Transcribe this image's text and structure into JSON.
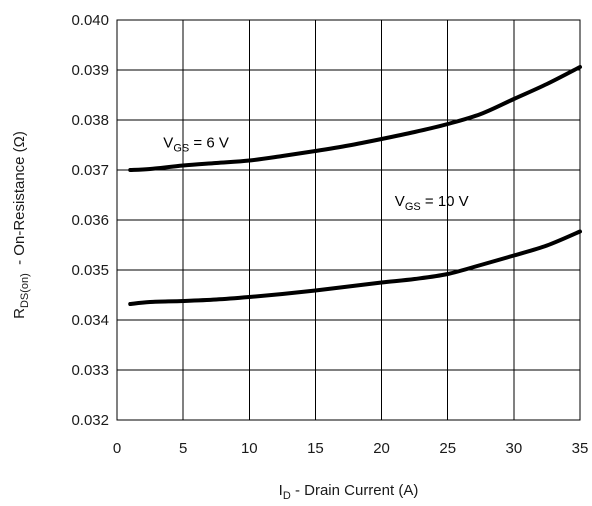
{
  "chart_data": {
    "type": "line",
    "title": "",
    "xlabel": {
      "main": "I",
      "sub": "D",
      "rest": " - Drain Current (A)"
    },
    "ylabel": {
      "main": "R",
      "sub": "DS(on)",
      "rest": "  - On-Resistance (Ω)"
    },
    "xlim": [
      0,
      35
    ],
    "ylim": [
      0.032,
      0.04
    ],
    "xticks": [
      0,
      5,
      10,
      15,
      20,
      25,
      30,
      35
    ],
    "xtick_labels": [
      "0",
      "5",
      "10",
      "15",
      "20",
      "25",
      "30",
      "35"
    ],
    "yticks": [
      0.032,
      0.033,
      0.034,
      0.035,
      0.036,
      0.037,
      0.038,
      0.039,
      0.04
    ],
    "ytick_labels": [
      "0.032",
      "0.033",
      "0.034",
      "0.035",
      "0.036",
      "0.037",
      "0.038",
      "0.039",
      "0.040"
    ],
    "grid": true,
    "series": [
      {
        "label": {
          "main": "V",
          "sub": "GS",
          "rest": " = 6 V"
        },
        "label_at": [
          3.5,
          0.03745
        ],
        "color": "#000000",
        "x": [
          1,
          2.5,
          5,
          7.5,
          10,
          12.5,
          15,
          17.5,
          20,
          22.5,
          25,
          27.5,
          30,
          32.5,
          35
        ],
        "y": [
          0.037,
          0.03702,
          0.03709,
          0.03714,
          0.03719,
          0.03728,
          0.03738,
          0.03749,
          0.03762,
          0.03776,
          0.03792,
          0.03812,
          0.03842,
          0.03872,
          0.03906
        ]
      },
      {
        "label": {
          "main": "V",
          "sub": "GS",
          "rest": " = 10 V"
        },
        "label_at": [
          21,
          0.03628
        ],
        "color": "#000000",
        "x": [
          1,
          2.5,
          5,
          7.5,
          10,
          12.5,
          15,
          17.5,
          20,
          22.5,
          25,
          27.5,
          30,
          32.5,
          35
        ],
        "y": [
          0.03432,
          0.03436,
          0.03438,
          0.03441,
          0.03446,
          0.03452,
          0.03459,
          0.03467,
          0.03475,
          0.03482,
          0.03492,
          0.0351,
          0.03529,
          0.03549,
          0.03577
        ]
      }
    ]
  }
}
